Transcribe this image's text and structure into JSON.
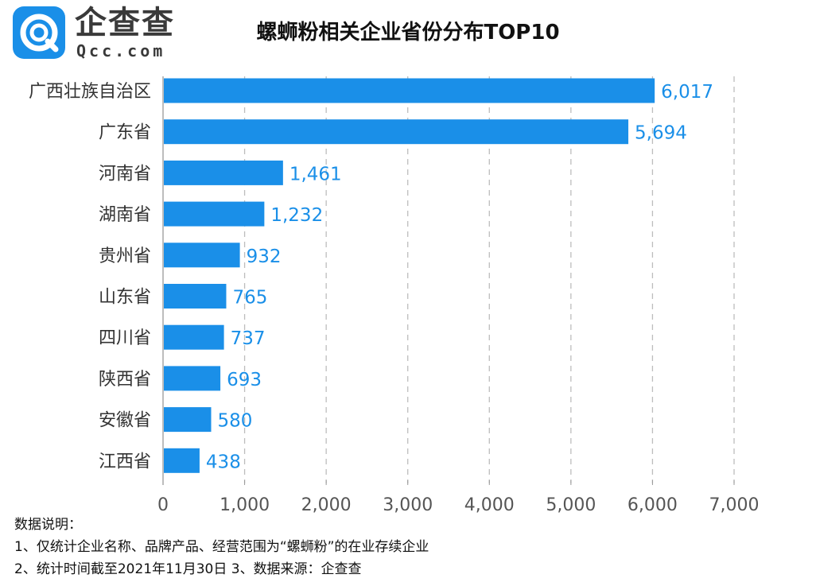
{
  "header": {
    "logo_text": "企查查",
    "logo_sub": "Qcc.com",
    "title": "螺蛳粉相关企业省份分布TOP10"
  },
  "chart_data": {
    "type": "bar",
    "orientation": "horizontal",
    "title": "螺蛳粉相关企业省份分布TOP10",
    "categories": [
      "广西壮族自治区",
      "广东省",
      "河南省",
      "湖南省",
      "贵州省",
      "山东省",
      "四川省",
      "陕西省",
      "安徽省",
      "江西省"
    ],
    "values": [
      6017,
      5694,
      1461,
      1232,
      932,
      765,
      737,
      693,
      580,
      438
    ],
    "value_labels": [
      "6,017",
      "5,694",
      "1,461",
      "1,232",
      "932",
      "765",
      "737",
      "693",
      "580",
      "438"
    ],
    "xlim": [
      0,
      7000
    ],
    "xticks": [
      0,
      1000,
      2000,
      3000,
      4000,
      5000,
      6000,
      7000
    ],
    "xtick_labels": [
      "0",
      "1,000",
      "2,000",
      "3,000",
      "4,000",
      "5,000",
      "6,000",
      "7,000"
    ],
    "grid": "vertical dashed",
    "colors": {
      "bar": "#1a8fe8",
      "label": "#1a8fe8",
      "grid": "#bdbdbd"
    }
  },
  "notes": {
    "heading": "数据说明：",
    "line1": "1、仅统计企业名称、品牌产品、经营范围为“螺蛳粉”的在业存续企业",
    "line2": "2、统计时间截至2021年11月30日  3、数据来源：企查查"
  }
}
